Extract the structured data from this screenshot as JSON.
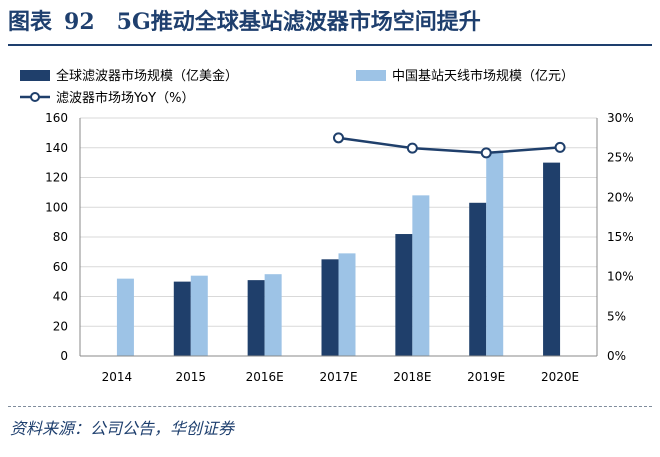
{
  "figure": {
    "label": "图表",
    "number": "92",
    "title": "5G推动全球基站滤波器市场空间提升",
    "source": "资料来源：公司公告，华创证券"
  },
  "chart_data": {
    "type": "bar",
    "categories": [
      "2014",
      "2015",
      "2016E",
      "2017E",
      "2018E",
      "2019E",
      "2020E"
    ],
    "series": [
      {
        "name": "全球滤波器市场规模（亿美金）",
        "kind": "bar",
        "axis": "left",
        "color": "#1f3f6b",
        "values": [
          null,
          50,
          51,
          65,
          82,
          103,
          130
        ]
      },
      {
        "name": "中国基站天线市场规模（亿元）",
        "kind": "bar",
        "axis": "left",
        "color": "#9dc3e6",
        "values": [
          52,
          54,
          55,
          69,
          108,
          137,
          null
        ]
      },
      {
        "name": "滤波器市场场YoY（%）",
        "kind": "line",
        "axis": "right",
        "color": "#1f3f6b",
        "values": [
          null,
          null,
          null,
          27.5,
          26.2,
          25.6,
          26.3
        ]
      }
    ],
    "y_left": {
      "min": 0,
      "max": 160,
      "ticks": [
        "0",
        "20",
        "40",
        "60",
        "80",
        "100",
        "120",
        "140",
        "160"
      ]
    },
    "y_right": {
      "min": 0,
      "max": 30,
      "ticks": [
        "0%",
        "5%",
        "10%",
        "15%",
        "20%",
        "25%",
        "30%"
      ]
    },
    "grid": true,
    "legend_position": "top"
  }
}
